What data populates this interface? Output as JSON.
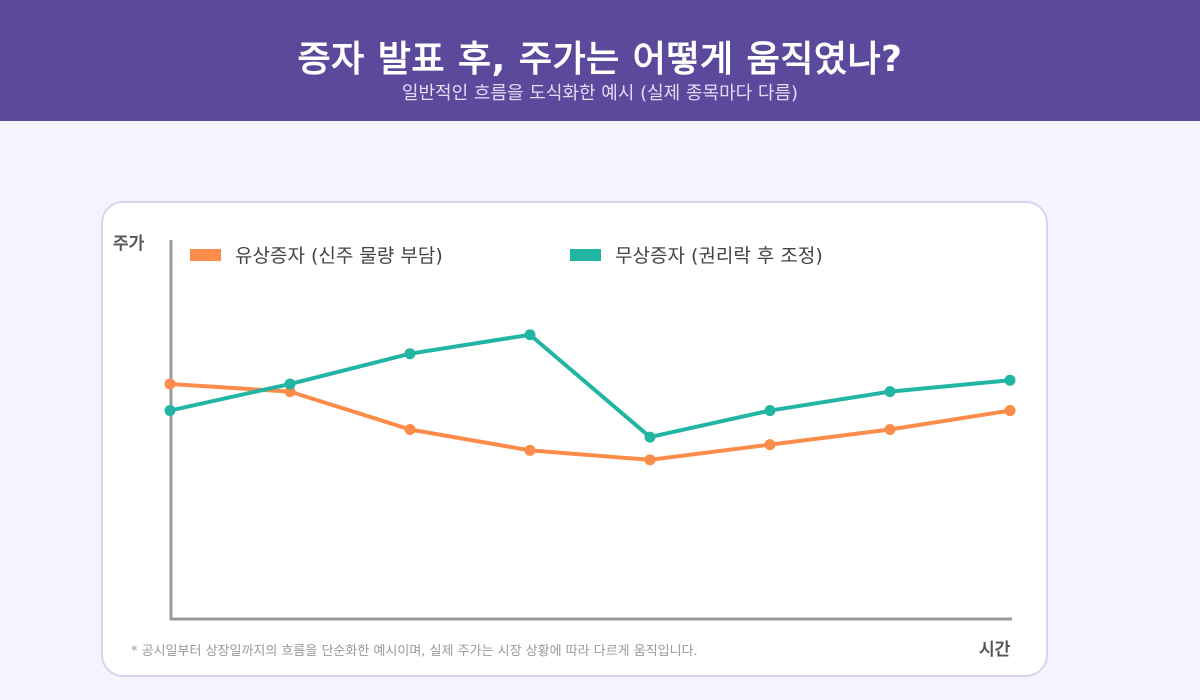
{
  "header": {
    "title": "증자 발표 후, 주가는 어떻게 움직였나?",
    "subtitle": "일반적인 흐름을 도식화한 예시 (실제 종목마다 다름)"
  },
  "colors": {
    "header_bg": "#5b4a9b",
    "rights_offering": "#fb8c4a",
    "bonus_issue": "#22b5a3"
  },
  "chart_data": {
    "type": "line",
    "ylabel": "주가",
    "xlabel": "시간",
    "x": [
      0,
      1,
      2,
      3,
      4,
      5,
      6,
      7
    ],
    "ylim": [
      0,
      100
    ],
    "grid": false,
    "legend_position": "top",
    "series": [
      {
        "name": "유상증자 (신주 물량 부담)",
        "color": "#fb8c4a",
        "values": [
          62,
          60,
          50,
          44.5,
          42,
          46,
          50,
          55
        ]
      },
      {
        "name": "무상증자 (권리락 후 조정)",
        "color": "#22b5a3",
        "values": [
          55,
          62,
          70,
          75,
          48,
          55,
          60,
          63
        ]
      }
    ],
    "footnote": "* 공시일부터 상장일까지의 흐름을 단순화한 예시이며, 실제 주가는 시장 상황에 따라 다르게 움직입니다."
  }
}
